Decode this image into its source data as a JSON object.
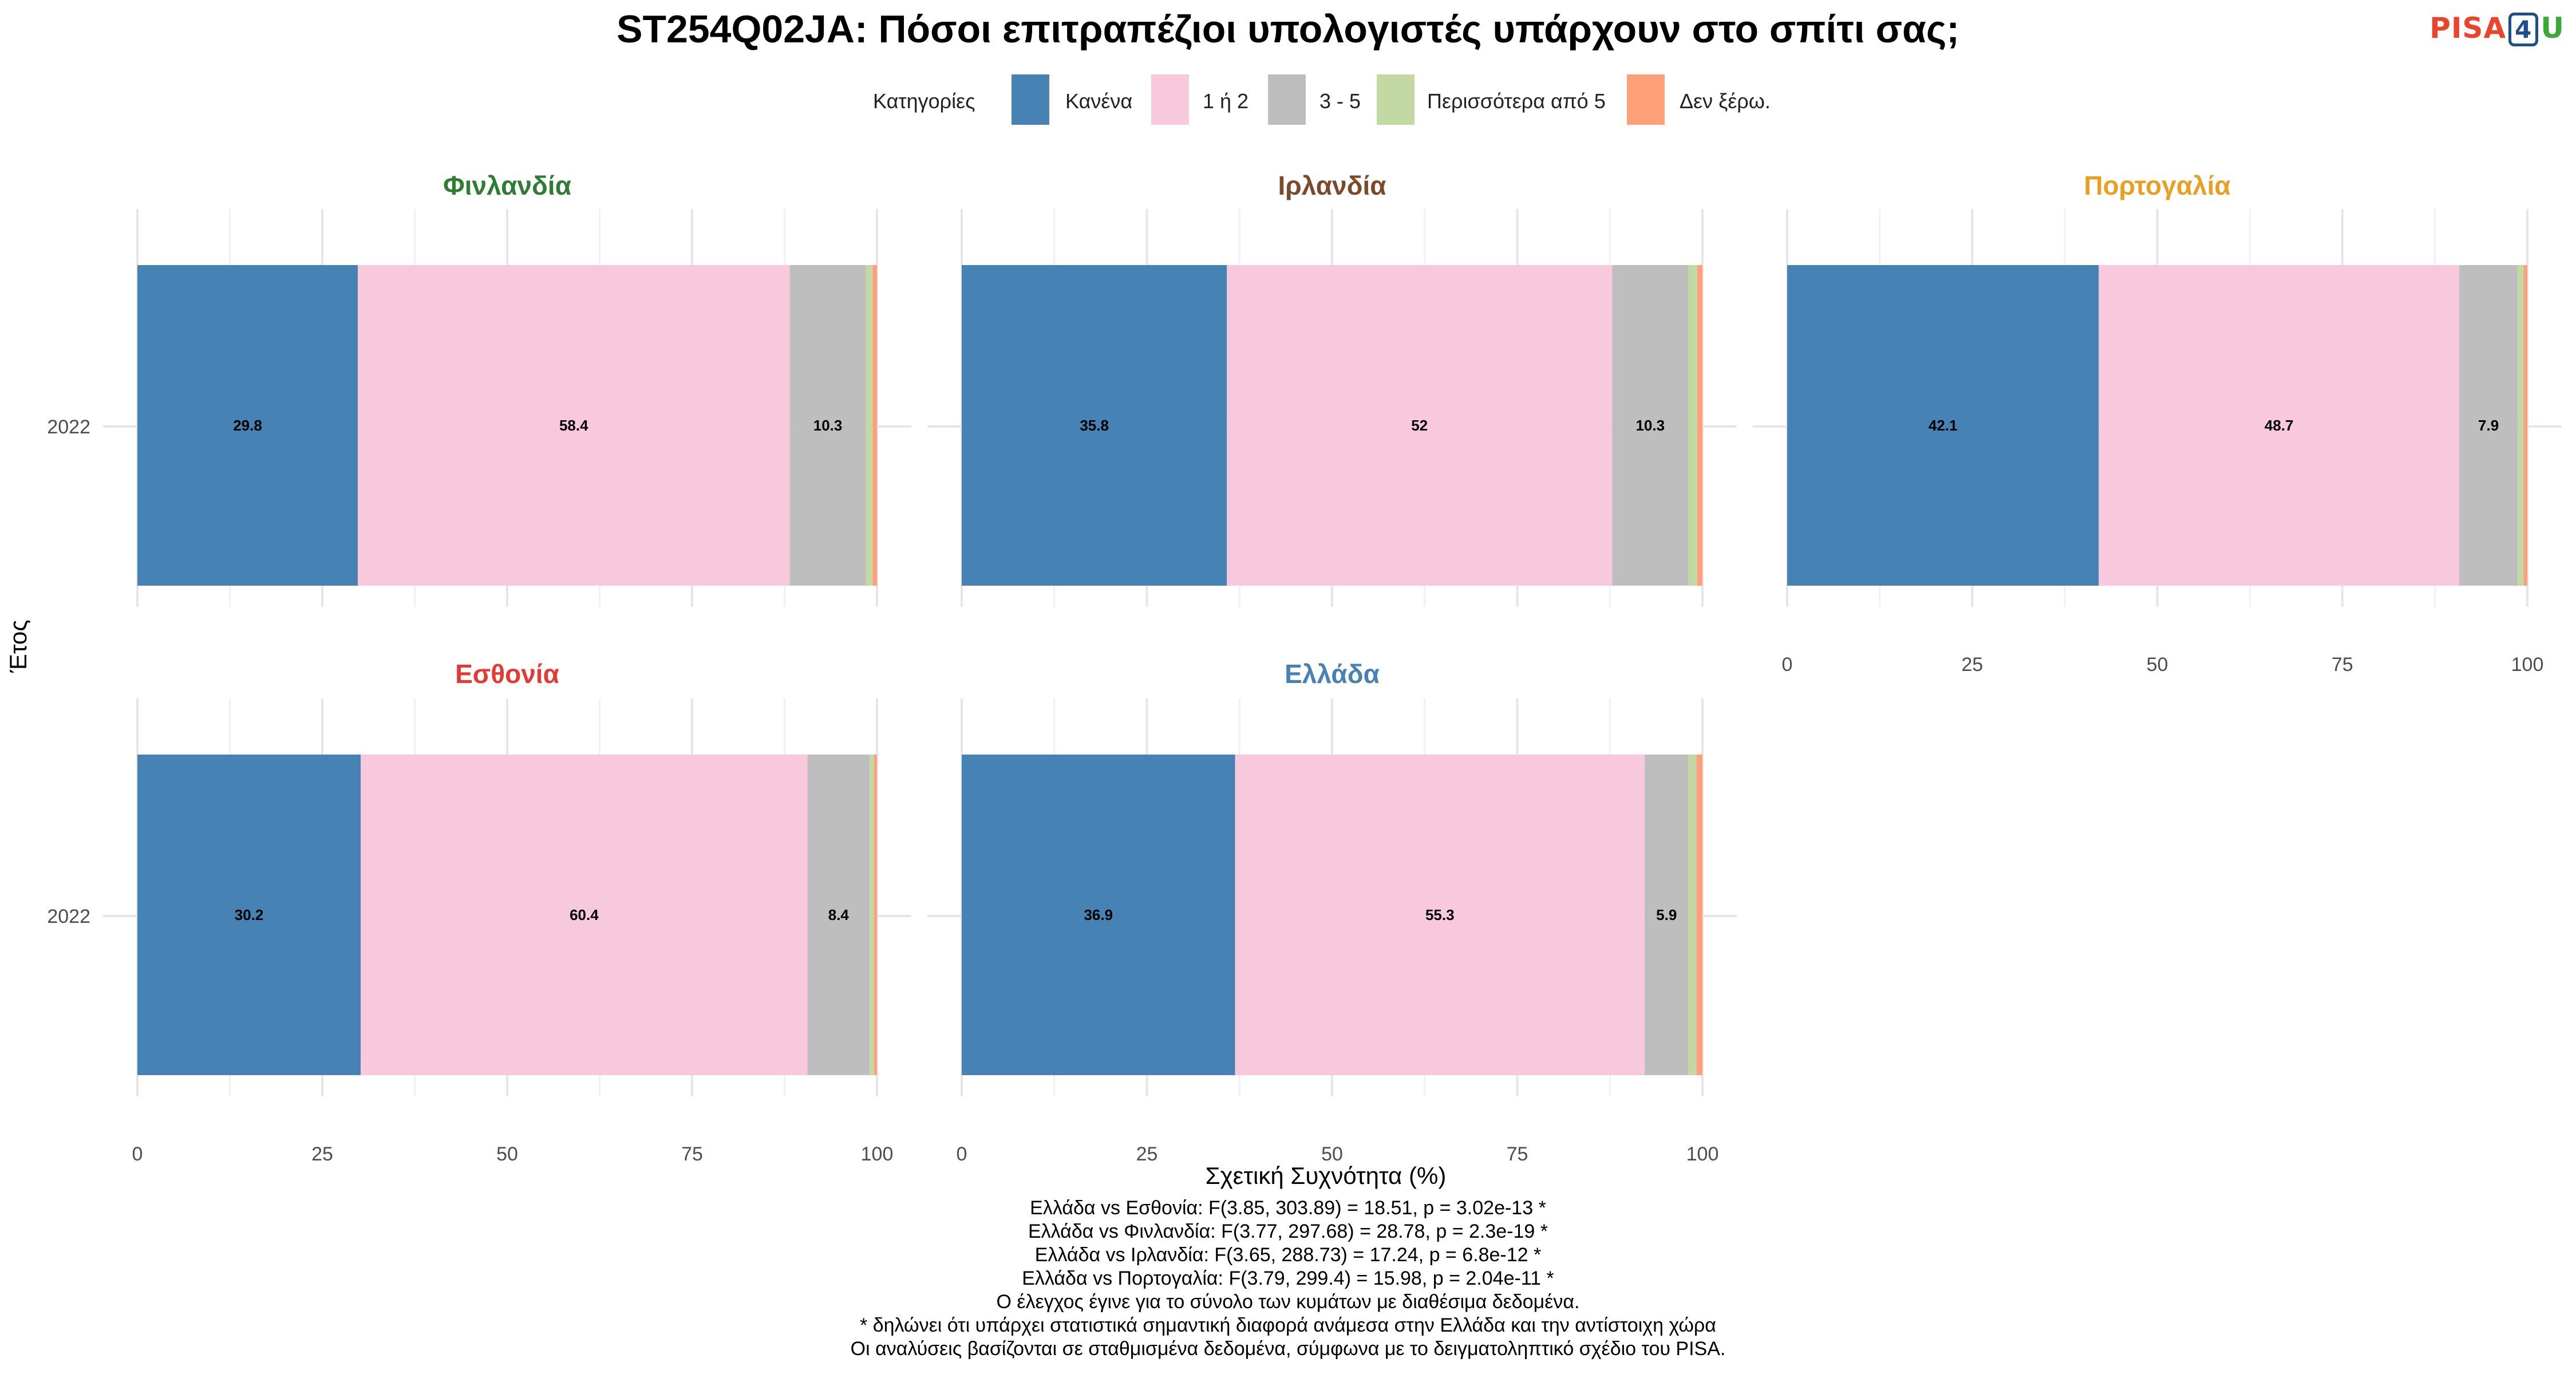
{
  "title": "ST254Q02JA: Πόσοι επιτραπέζιοι υπολογιστές υπάρχουν στο σπίτι σας;",
  "logo": {
    "part1": "PISA",
    "part2": "4",
    "part3": "U"
  },
  "chart_data": {
    "type": "bar",
    "orientation": "horizontal",
    "stacked": true,
    "legend_title": "Κατηγορίες",
    "legend_position": "top",
    "categories": [
      "Κανένα",
      "1 ή 2",
      "3 - 5",
      "Περισσότερα από 5",
      "Δεν ξέρω."
    ],
    "colors": [
      "#4682b4",
      "#f8c8dc",
      "#bebebe",
      "#c2d9a4",
      "#ffa07a"
    ],
    "xlabel": "Σχετική Συχνότητα (%)",
    "ylabel": "Έτος",
    "xlim": [
      0,
      100
    ],
    "xticks": [
      "0",
      "25",
      "50",
      "75",
      "100"
    ],
    "grid": true,
    "panels": [
      {
        "name": "Φινλανδία",
        "color": "#2e7d32",
        "year": "2022",
        "values": [
          29.8,
          58.4,
          10.3,
          0.9,
          0.6
        ],
        "labels": [
          "29.8",
          "58.4",
          "10.3",
          "",
          ""
        ],
        "show_xaxis": false
      },
      {
        "name": "Ιρλανδία",
        "color": "#7b4a2a",
        "year": "2022",
        "values": [
          35.8,
          52.0,
          10.3,
          1.2,
          0.7
        ],
        "labels": [
          "35.8",
          "52",
          "10.3",
          "",
          ""
        ],
        "show_xaxis": false
      },
      {
        "name": "Πορτογαλία",
        "color": "#e6a122",
        "year": "2022",
        "values": [
          42.1,
          48.7,
          7.9,
          0.8,
          0.5
        ],
        "labels": [
          "42.1",
          "48.7",
          "7.9",
          "",
          ""
        ],
        "show_xaxis": true
      },
      {
        "name": "Εσθονία",
        "color": "#e53935",
        "year": "2022",
        "values": [
          30.2,
          60.4,
          8.4,
          0.6,
          0.4
        ],
        "labels": [
          "30.2",
          "60.4",
          "8.4",
          "",
          ""
        ],
        "show_xaxis": true
      },
      {
        "name": "Ελλάδα",
        "color": "#4682b4",
        "year": "2022",
        "values": [
          36.9,
          55.3,
          5.9,
          1.1,
          0.8
        ],
        "labels": [
          "36.9",
          "55.3",
          "5.9",
          "",
          ""
        ],
        "show_xaxis": true
      }
    ]
  },
  "notes": [
    "Ελλάδα vs Εσθονία: F(3.85, 303.89) = 18.51, p = 3.02e-13 *",
    "Ελλάδα vs Φινλανδία: F(3.77, 297.68) = 28.78, p = 2.3e-19 *",
    "Ελλάδα vs Ιρλανδία: F(3.65, 288.73) = 17.24, p = 6.8e-12 *",
    "Ελλάδα vs Πορτογαλία: F(3.79, 299.4) = 15.98, p = 2.04e-11 *",
    "Ο έλεγχος έγινε για το σύνολο των κυμάτων με διαθέσιμα δεδομένα.",
    "* δηλώνει ότι υπάρχει στατιστικά σημαντική διαφορά ανάμεσα στην Ελλάδα και την αντίστοιχη χώρα",
    "Οι αναλύσεις βασίζονται σε σταθμισμένα δεδομένα, σύμφωνα με το δειγματοληπτικό σχέδιο του PISA."
  ]
}
